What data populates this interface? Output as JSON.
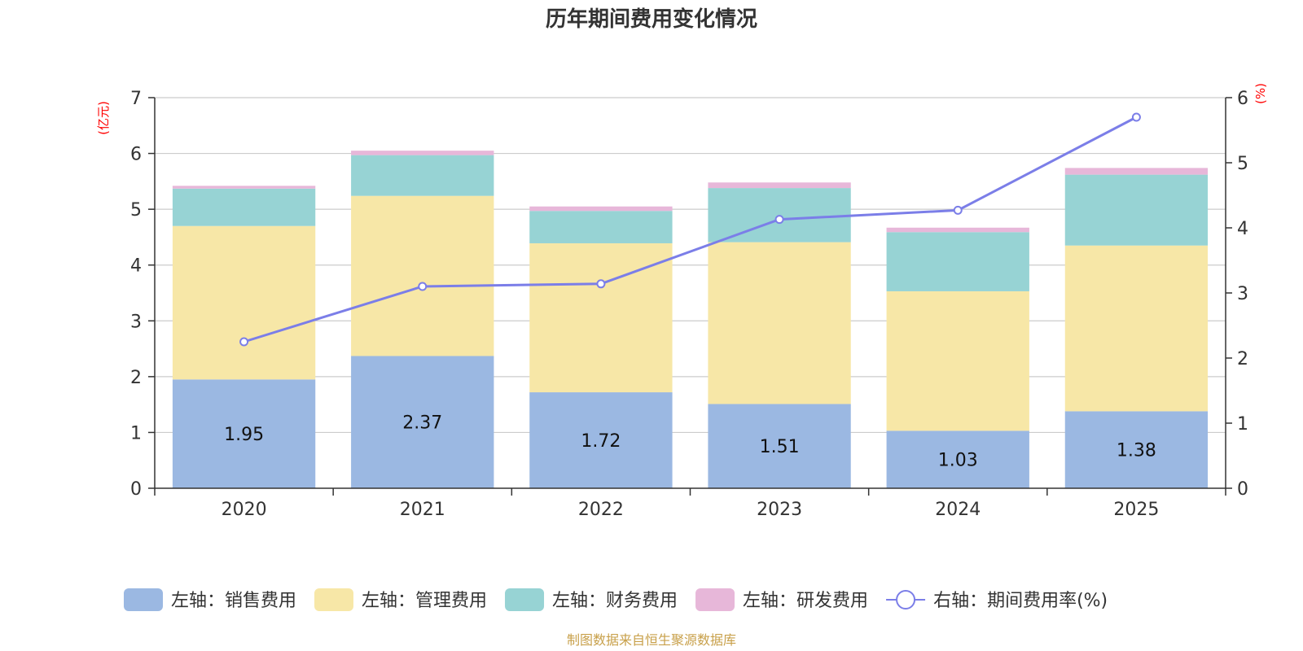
{
  "chart_data": {
    "type": "bar",
    "title": "历年期间费用变化情况",
    "categories": [
      "2020",
      "2021",
      "2022",
      "2023",
      "2024",
      "2025"
    ],
    "left_axis": {
      "unit": "(亿元)",
      "ylim": [
        0,
        7
      ],
      "ticks": [
        0,
        1,
        2,
        3,
        4,
        5,
        6,
        7
      ]
    },
    "right_axis": {
      "unit": "(%)",
      "ylim": [
        0,
        6
      ],
      "ticks": [
        0,
        1,
        2,
        3,
        4,
        5,
        6
      ]
    },
    "grid": true,
    "legend_position": "bottom",
    "series": [
      {
        "name": "左轴：销售费用",
        "type": "bar",
        "stack": "left",
        "color": "#9bb8e2",
        "values": [
          1.95,
          2.37,
          1.72,
          1.51,
          1.03,
          1.38
        ],
        "show_labels": true
      },
      {
        "name": "左轴：管理费用",
        "type": "bar",
        "stack": "left",
        "color": "#f7e7a7",
        "values": [
          2.75,
          2.87,
          2.67,
          2.9,
          2.5,
          2.97
        ]
      },
      {
        "name": "左轴：财务费用",
        "type": "bar",
        "stack": "left",
        "color": "#97d3d4",
        "values": [
          0.67,
          0.73,
          0.58,
          0.97,
          1.06,
          1.27
        ]
      },
      {
        "name": "左轴：研发费用",
        "type": "bar",
        "stack": "left",
        "color": "#e7b7d9",
        "values": [
          0.05,
          0.08,
          0.08,
          0.1,
          0.08,
          0.12
        ]
      },
      {
        "name": "右轴：期间费用率(%)",
        "type": "line",
        "axis": "right",
        "color": "#7b7ee8",
        "values": [
          2.25,
          3.1,
          3.14,
          4.13,
          4.27,
          5.7
        ]
      }
    ]
  },
  "footer": {
    "source": "制图数据来自恒生聚源数据库"
  }
}
